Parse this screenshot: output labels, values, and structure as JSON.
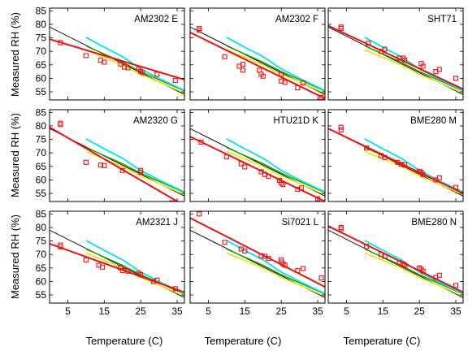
{
  "figure": {
    "xlabel": "Temperature (C)",
    "ylabel": "Measured RH (%)",
    "colors": {
      "black_line": "#000000",
      "cyan_line": "#00e5ee",
      "green_line": "#00a000",
      "yellow_line": "#f0e000",
      "red": "#ee1111"
    }
  },
  "chart_data": [
    {
      "type": "scatter",
      "title": "AM2302 E",
      "xlim": [
        0,
        37
      ],
      "ylim": [
        52,
        86
      ],
      "xticks": [
        5,
        15,
        25,
        35
      ],
      "yticks": [
        55,
        60,
        65,
        70,
        75,
        80,
        85
      ],
      "show_xticklabels": false,
      "show_yticklabels": true,
      "points": [
        [
          3,
          73.2
        ],
        [
          10,
          68.4
        ],
        [
          14,
          66.7
        ],
        [
          15,
          66.0
        ],
        [
          19.5,
          65.3
        ],
        [
          20.5,
          64.2
        ],
        [
          21.5,
          63.9
        ],
        [
          24.5,
          63.5
        ],
        [
          25,
          62.6
        ],
        [
          25.5,
          62.1
        ],
        [
          29.5,
          61.5
        ],
        [
          34.5,
          59.2
        ]
      ],
      "fit": [
        [
          0,
          74.5
        ],
        [
          37,
          59.5
        ]
      ],
      "ref_black": [
        [
          0,
          79
        ],
        [
          37,
          54
        ]
      ]
    },
    {
      "type": "scatter",
      "title": "AM2302 F",
      "xlim": [
        0,
        37
      ],
      "ylim": [
        52,
        86
      ],
      "xticks": [
        5,
        15,
        25,
        35
      ],
      "yticks": [
        55,
        60,
        65,
        70,
        75,
        80,
        85
      ],
      "show_xticklabels": false,
      "show_yticklabels": false,
      "points": [
        [
          2.5,
          78.5
        ],
        [
          2.5,
          77.8
        ],
        [
          9.5,
          68.0
        ],
        [
          13.5,
          64.5
        ],
        [
          14.5,
          63.0
        ],
        [
          14.5,
          65.2
        ],
        [
          19,
          63.0
        ],
        [
          19.5,
          61.5
        ],
        [
          20,
          60.8
        ],
        [
          25,
          61.5
        ],
        [
          25,
          59.0
        ],
        [
          26,
          58.5
        ],
        [
          29.5,
          56.5
        ],
        [
          31,
          58.3
        ],
        [
          36,
          53.0
        ]
      ],
      "fit": [
        [
          0,
          77
        ],
        [
          37,
          52.5
        ]
      ],
      "ref_black": [
        [
          0,
          79
        ],
        [
          37,
          54
        ]
      ]
    },
    {
      "type": "scatter",
      "title": "SHT71",
      "xlim": [
        0,
        37
      ],
      "ylim": [
        52,
        86
      ],
      "xticks": [
        5,
        15,
        25,
        35
      ],
      "yticks": [
        55,
        60,
        65,
        70,
        75,
        80,
        85
      ],
      "show_xticklabels": false,
      "show_yticklabels": false,
      "points": [
        [
          3.5,
          79.0
        ],
        [
          3.5,
          78.5
        ],
        [
          11,
          73.0
        ],
        [
          14.5,
          70.0
        ],
        [
          15.5,
          70.8
        ],
        [
          19.5,
          67.5
        ],
        [
          20.5,
          67.5
        ],
        [
          21,
          66.8
        ],
        [
          25.5,
          65.5
        ],
        [
          26,
          64.5
        ],
        [
          29.5,
          62.5
        ],
        [
          30.5,
          63.3
        ],
        [
          35,
          60.0
        ]
      ],
      "fit": [
        [
          0,
          79.5
        ],
        [
          37,
          56
        ]
      ],
      "ref_black": [
        [
          0,
          79
        ],
        [
          37,
          54
        ]
      ]
    },
    {
      "type": "scatter",
      "title": "AM2320 G",
      "xlim": [
        0,
        37
      ],
      "ylim": [
        52,
        86
      ],
      "xticks": [
        5,
        15,
        25,
        35
      ],
      "yticks": [
        55,
        60,
        65,
        70,
        75,
        80,
        85
      ],
      "show_xticklabels": false,
      "show_yticklabels": true,
      "points": [
        [
          3,
          81.0
        ],
        [
          3,
          80.5
        ],
        [
          10,
          66.5
        ],
        [
          14,
          65.5
        ],
        [
          15,
          65.3
        ],
        [
          20,
          63.5
        ],
        [
          25,
          63.5
        ],
        [
          25,
          62.8
        ],
        [
          33.5,
          51.5
        ]
      ],
      "fit": [
        [
          0,
          79.5
        ],
        [
          37,
          50.5
        ]
      ],
      "ref_black": [
        [
          0,
          79
        ],
        [
          37,
          54
        ]
      ]
    },
    {
      "type": "scatter",
      "title": "HTU21D K",
      "xlim": [
        0,
        37
      ],
      "ylim": [
        52,
        86
      ],
      "xticks": [
        5,
        15,
        25,
        35
      ],
      "yticks": [
        55,
        60,
        65,
        70,
        75,
        80,
        85
      ],
      "show_xticklabels": false,
      "show_yticklabels": false,
      "points": [
        [
          3,
          74.0
        ],
        [
          10,
          68.5
        ],
        [
          14,
          66.0
        ],
        [
          15,
          64.8
        ],
        [
          19.5,
          63.0
        ],
        [
          20.5,
          62.0
        ],
        [
          21.5,
          61.3
        ],
        [
          24.5,
          59.8
        ],
        [
          25,
          58.8
        ],
        [
          25.5,
          58.3
        ],
        [
          29.5,
          56.5
        ],
        [
          30.5,
          57.0
        ],
        [
          35,
          53.0
        ]
      ],
      "fit": [
        [
          0,
          76
        ],
        [
          37,
          52
        ]
      ],
      "ref_black": [
        [
          0,
          79
        ],
        [
          37,
          54
        ]
      ]
    },
    {
      "type": "scatter",
      "title": "BME280 M",
      "xlim": [
        0,
        37
      ],
      "ylim": [
        52,
        86
      ],
      "xticks": [
        5,
        15,
        25,
        35
      ],
      "yticks": [
        55,
        60,
        65,
        70,
        75,
        80,
        85
      ],
      "show_xticklabels": false,
      "show_yticklabels": false,
      "points": [
        [
          3.5,
          79.5
        ],
        [
          3.5,
          78.5
        ],
        [
          10.5,
          71.8
        ],
        [
          14.5,
          69.0
        ],
        [
          15.5,
          68.3
        ],
        [
          19,
          66.5
        ],
        [
          20,
          65.8
        ],
        [
          21,
          65.5
        ],
        [
          25,
          63.2
        ],
        [
          25.5,
          62.8
        ],
        [
          26,
          62.0
        ],
        [
          29.5,
          60.0
        ],
        [
          30.5,
          60.8
        ],
        [
          35,
          57.2
        ]
      ],
      "fit": [
        [
          0,
          79
        ],
        [
          37,
          55
        ]
      ],
      "ref_black": [
        [
          0,
          79
        ],
        [
          37,
          54
        ]
      ]
    },
    {
      "type": "scatter",
      "title": "AM2321 J",
      "xlim": [
        0,
        37
      ],
      "ylim": [
        52,
        86
      ],
      "xticks": [
        5,
        15,
        25,
        35
      ],
      "yticks": [
        55,
        60,
        65,
        70,
        75,
        80,
        85
      ],
      "show_xticklabels": true,
      "show_yticklabels": true,
      "points": [
        [
          3,
          73.5
        ],
        [
          3,
          72.8
        ],
        [
          10,
          68.0
        ],
        [
          13.5,
          66.0
        ],
        [
          14.5,
          65.3
        ],
        [
          19.5,
          65.0
        ],
        [
          20,
          64.0
        ],
        [
          21.5,
          63.8
        ],
        [
          24.5,
          63.0
        ],
        [
          25,
          62.5
        ],
        [
          28.5,
          60.0
        ],
        [
          29.5,
          60.5
        ],
        [
          34.5,
          57.3
        ]
      ],
      "fit": [
        [
          0,
          74
        ],
        [
          37,
          56
        ]
      ],
      "ref_black": [
        [
          0,
          79
        ],
        [
          37,
          54
        ]
      ]
    },
    {
      "type": "scatter",
      "title": "Si7021 L",
      "xlim": [
        0,
        37
      ],
      "ylim": [
        52,
        86
      ],
      "xticks": [
        5,
        15,
        25,
        35
      ],
      "yticks": [
        55,
        60,
        65,
        70,
        75,
        80,
        85
      ],
      "show_xticklabels": true,
      "show_yticklabels": false,
      "points": [
        [
          2.5,
          85.0
        ],
        [
          9.5,
          74.5
        ],
        [
          14,
          72.0
        ],
        [
          15,
          71.3
        ],
        [
          19.5,
          69.5
        ],
        [
          20.5,
          69.3
        ],
        [
          21.5,
          68.5
        ],
        [
          25,
          68.0
        ],
        [
          25,
          67.2
        ],
        [
          25.5,
          66.5
        ],
        [
          26,
          66.0
        ],
        [
          29.5,
          64.0
        ],
        [
          31,
          64.8
        ],
        [
          36,
          61.3
        ]
      ],
      "fit": [
        [
          0,
          83.5
        ],
        [
          37,
          58
        ]
      ],
      "ref_black": [
        [
          0,
          79
        ],
        [
          37,
          54
        ]
      ]
    },
    {
      "type": "scatter",
      "title": "BME280 N",
      "xlim": [
        0,
        37
      ],
      "ylim": [
        52,
        86
      ],
      "xticks": [
        5,
        15,
        25,
        35
      ],
      "yticks": [
        55,
        60,
        65,
        70,
        75,
        80,
        85
      ],
      "show_xticklabels": true,
      "show_yticklabels": false,
      "points": [
        [
          3.5,
          80.0
        ],
        [
          3.5,
          79.5
        ],
        [
          10.5,
          73.0
        ],
        [
          14.5,
          70.0
        ],
        [
          15.5,
          69.3
        ],
        [
          19.5,
          67.0
        ],
        [
          20.5,
          66.5
        ],
        [
          21,
          66.0
        ],
        [
          25,
          65.0
        ],
        [
          25.5,
          64.5
        ],
        [
          26,
          63.8
        ],
        [
          29.5,
          61.5
        ],
        [
          30.5,
          62.3
        ],
        [
          35,
          58.5
        ]
      ],
      "fit": [
        [
          0,
          80.5
        ],
        [
          37,
          56
        ]
      ],
      "ref_black": [
        [
          0,
          79
        ],
        [
          37,
          54
        ]
      ]
    }
  ],
  "reference_curves": {
    "cyan": [
      [
        10,
        75.2
      ],
      [
        15,
        71.5
      ],
      [
        20,
        68.0
      ],
      [
        25,
        63.5
      ],
      [
        30,
        60.0
      ],
      [
        37,
        55.5
      ]
    ],
    "green": [
      [
        10,
        72.0
      ],
      [
        15,
        69.0
      ],
      [
        20,
        66.0
      ],
      [
        25,
        62.5
      ],
      [
        30,
        59.5
      ],
      [
        37,
        55.3
      ]
    ],
    "yellow": [
      [
        10,
        70.5
      ],
      [
        15,
        67.8
      ],
      [
        20,
        65.0
      ],
      [
        25,
        61.5
      ],
      [
        30,
        58.7
      ],
      [
        37,
        54.5
      ]
    ]
  }
}
